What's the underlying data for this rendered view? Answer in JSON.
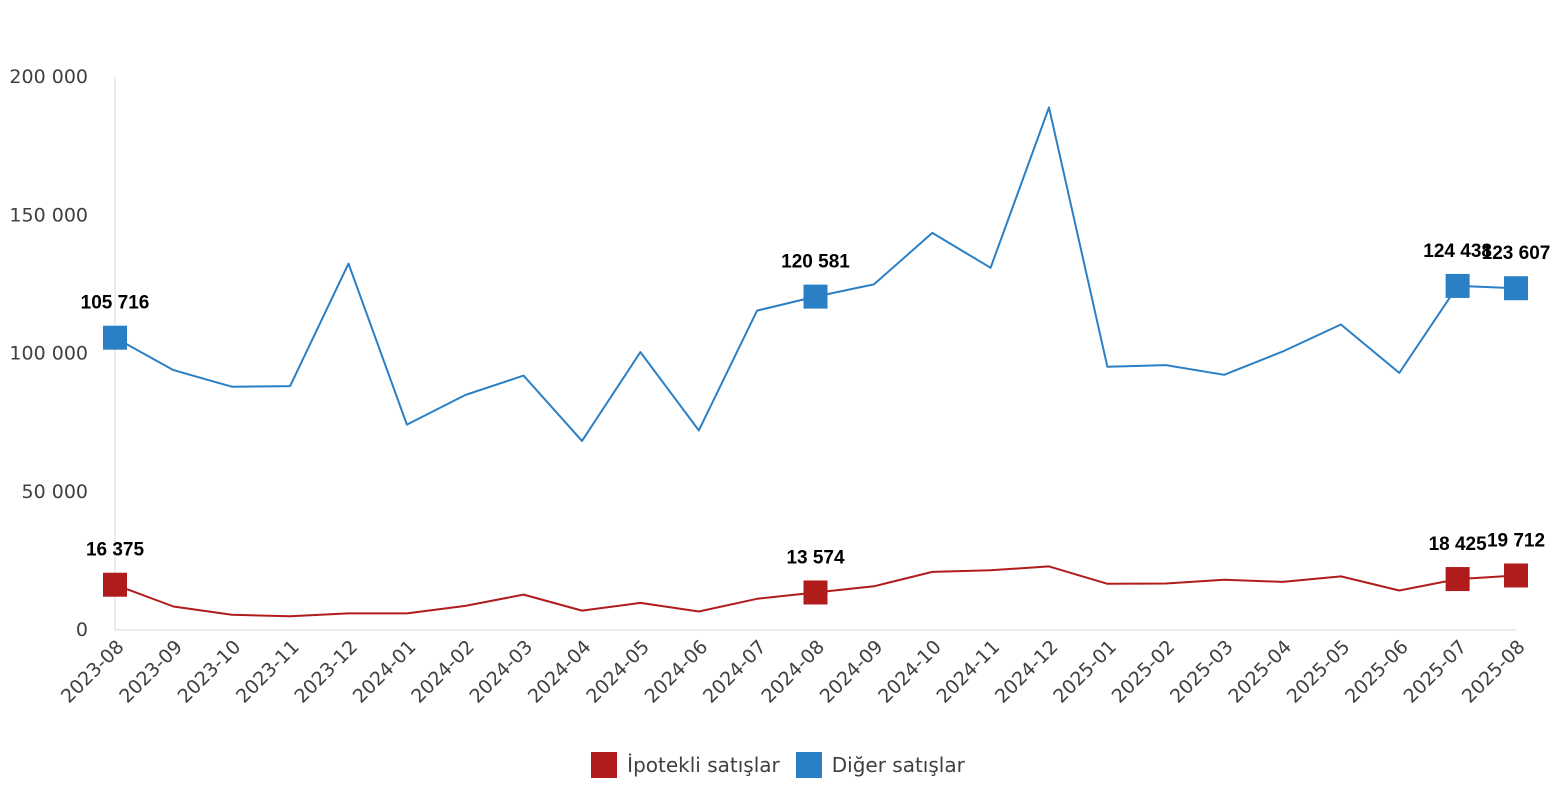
{
  "chart_data": {
    "type": "line",
    "categories": [
      "2023-08",
      "2023-09",
      "2023-10",
      "2023-11",
      "2023-12",
      "2024-01",
      "2024-02",
      "2024-03",
      "2024-04",
      "2024-05",
      "2024-06",
      "2024-07",
      "2024-08",
      "2024-09",
      "2024-10",
      "2024-11",
      "2024-12",
      "2025-01",
      "2025-02",
      "2025-03",
      "2025-04",
      "2025-05",
      "2025-06",
      "2025-07",
      "2025-08"
    ],
    "y_ticks": [
      {
        "value": 0,
        "label": "0"
      },
      {
        "value": 50000,
        "label": "50 000"
      },
      {
        "value": 100000,
        "label": "100 000"
      },
      {
        "value": 150000,
        "label": "150 000"
      },
      {
        "value": 200000,
        "label": "200 000"
      }
    ],
    "ylim": [
      0,
      200000
    ],
    "grid": false,
    "legend_position": "bottom",
    "series": [
      {
        "name": "İpotekli satışlar",
        "color": "#B01C1C",
        "values": [
          16375,
          8500,
          5500,
          5000,
          6000,
          6000,
          8700,
          12800,
          7000,
          9800,
          6700,
          11300,
          13574,
          15800,
          21000,
          21600,
          23000,
          16700,
          16800,
          18200,
          17400,
          19400,
          14300,
          18425,
          19712
        ],
        "highlights": [
          {
            "index": 0,
            "label": "16 375"
          },
          {
            "index": 12,
            "label": "13 574"
          },
          {
            "index": 23,
            "label": "18 425"
          },
          {
            "index": 24,
            "label": "19 712"
          }
        ]
      },
      {
        "name": "Diğer satışlar",
        "color": "#2B80C5",
        "values": [
          105716,
          94000,
          88000,
          88200,
          132500,
          74300,
          85000,
          92000,
          68400,
          100500,
          72200,
          115500,
          120581,
          125000,
          143600,
          131000,
          189000,
          95200,
          95800,
          92300,
          100700,
          110500,
          93000,
          124438,
          123607
        ],
        "highlights": [
          {
            "index": 0,
            "label": "105 716"
          },
          {
            "index": 12,
            "label": "120 581"
          },
          {
            "index": 23,
            "label": "124 438"
          },
          {
            "index": 24,
            "label": "123 607"
          }
        ]
      }
    ]
  }
}
